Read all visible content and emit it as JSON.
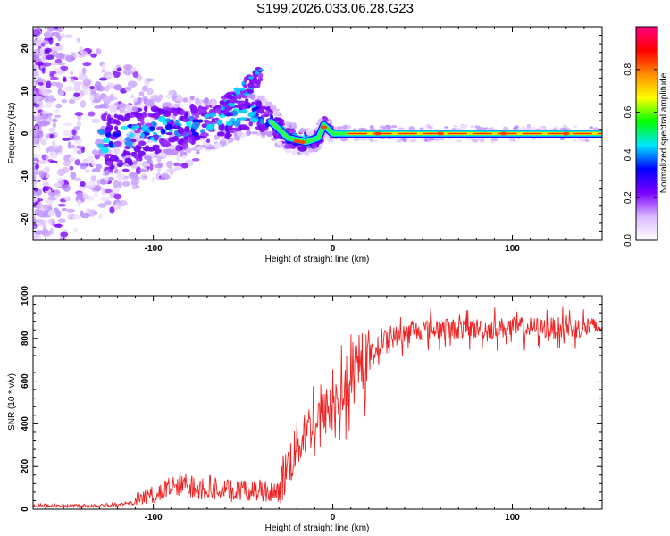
{
  "title": "S199.2026.033.06.28.G23",
  "chart_data": [
    {
      "type": "heatmap",
      "xlabel": "Height of straight line (km)",
      "ylabel": "Frequency (Hz)",
      "xlim": [
        -167,
        150
      ],
      "ylim": [
        -25,
        25
      ],
      "xticks": [
        -100,
        0,
        100
      ],
      "yticks": [
        -20,
        -10,
        0,
        10,
        20
      ],
      "ridge": [
        {
          "x": -120,
          "y": -2
        },
        {
          "x": -100,
          "y": 1
        },
        {
          "x": -80,
          "y": 1.5
        },
        {
          "x": -60,
          "y": 3
        },
        {
          "x": -45,
          "y": 5
        },
        {
          "x": -35,
          "y": 3
        },
        {
          "x": -25,
          "y": -1
        },
        {
          "x": -15,
          "y": -2
        },
        {
          "x": -8,
          "y": -1
        },
        {
          "x": -5,
          "y": 2
        },
        {
          "x": 0,
          "y": 0
        },
        {
          "x": 10,
          "y": 0
        },
        {
          "x": 150,
          "y": 0
        }
      ],
      "colorbar": {
        "label": "Normalized spectral amplitude",
        "range": [
          0,
          1
        ],
        "ticks": [
          "0.0",
          "0.2",
          "0.4",
          "0.6",
          "0.8"
        ],
        "colors": [
          "#ffffff",
          "#d9b8ff",
          "#7b00ff",
          "#0000ff",
          "#00e5ff",
          "#00ff00",
          "#ffff00",
          "#ff8c00",
          "#ff0000",
          "#ff007f"
        ]
      }
    },
    {
      "type": "line",
      "xlabel": "Height of straight line (km)",
      "ylabel": "SNR (10 * v/v)",
      "xlim": [
        -167,
        150
      ],
      "ylim": [
        0,
        1000
      ],
      "xticks": [
        -100,
        0,
        100
      ],
      "yticks": [
        0,
        200,
        400,
        600,
        800,
        1000
      ],
      "color": "#ee2222",
      "envelope": [
        {
          "x": -167,
          "y": 25
        },
        {
          "x": -140,
          "y": 25
        },
        {
          "x": -120,
          "y": 40
        },
        {
          "x": -100,
          "y": 90
        },
        {
          "x": -85,
          "y": 150
        },
        {
          "x": -70,
          "y": 140
        },
        {
          "x": -55,
          "y": 110
        },
        {
          "x": -40,
          "y": 120
        },
        {
          "x": -30,
          "y": 110
        },
        {
          "x": -25,
          "y": 200
        },
        {
          "x": -20,
          "y": 300
        },
        {
          "x": -10,
          "y": 420
        },
        {
          "x": 0,
          "y": 480
        },
        {
          "x": 10,
          "y": 580
        },
        {
          "x": 20,
          "y": 720
        },
        {
          "x": 30,
          "y": 800
        },
        {
          "x": 50,
          "y": 840
        },
        {
          "x": 100,
          "y": 850
        },
        {
          "x": 150,
          "y": 850
        }
      ]
    }
  ]
}
